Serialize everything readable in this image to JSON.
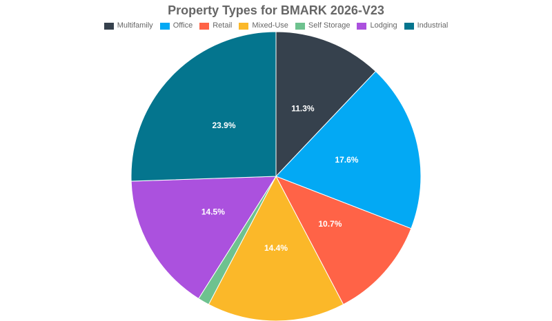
{
  "chart_data": {
    "type": "pie",
    "title": "Property Types for BMARK 2026-V23",
    "legend_position": "top",
    "categories": [
      "Multifamily",
      "Office",
      "Retail",
      "Mixed-Use",
      "Self Storage",
      "Lodging",
      "Industrial"
    ],
    "values": [
      11.3,
      17.6,
      10.7,
      14.4,
      1.2,
      14.5,
      23.9
    ],
    "labels": [
      "11.3%",
      "17.6%",
      "10.7%",
      "14.4%",
      "",
      "14.5%",
      "23.9%"
    ],
    "colors": [
      "#36414d",
      "#03a9f4",
      "#ff6347",
      "#fbb829",
      "#6ec28f",
      "#ab51de",
      "#04758e"
    ]
  }
}
